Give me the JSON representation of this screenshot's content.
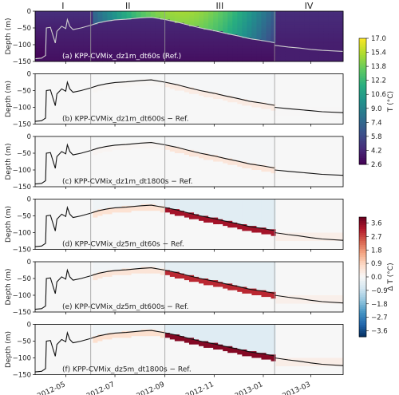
{
  "chart_data": {
    "type": "heatmap",
    "period_labels": [
      "I",
      "II",
      "III",
      "IV"
    ],
    "period_boundaries": [
      "2012-06-01",
      "2012-09-01",
      "2013-01-15"
    ],
    "x_range": [
      "2012-03-24",
      "2013-04-10"
    ],
    "x_ticks": [
      "2012-05",
      "2012-07",
      "2012-09",
      "2012-11",
      "2013-01",
      "2013-03"
    ],
    "ylabel": "Depth (m)",
    "ylim": [
      -150,
      0
    ],
    "y_ticks": [
      0,
      -50,
      -100,
      -150
    ],
    "colorbar_T": {
      "label": "T (°C)",
      "range": [
        2.6,
        17.0
      ],
      "ticks": [
        "17.0",
        "15.4",
        "13.8",
        "12.2",
        "10.6",
        "9.0",
        "7.4",
        "5.8",
        "4.2",
        "2.6"
      ],
      "colors": [
        "#440154",
        "#472d7b",
        "#3b528b",
        "#2c728e",
        "#21918c",
        "#28ae80",
        "#5ec962",
        "#addc30",
        "#fde725"
      ]
    },
    "colorbar_dT": {
      "label": "Δ T (°C)",
      "range": [
        -4.0,
        4.0
      ],
      "ticks": [
        "3.6",
        "2.7",
        "1.8",
        "0.9",
        "0.0",
        "−0.9",
        "−1.8",
        "−2.7",
        "−3.6"
      ],
      "colors": [
        "#053061",
        "#2166ac",
        "#4393c3",
        "#92c5de",
        "#d1e5f0",
        "#f7f7f7",
        "#fddbc7",
        "#f4a582",
        "#d6604d",
        "#b2182b",
        "#67001f"
      ]
    },
    "mixed_layer_depth": {
      "dates": [
        "2012-03-24",
        "2012-04-01",
        "2012-04-06",
        "2012-04-07",
        "2012-04-12",
        "2012-04-18",
        "2012-04-20",
        "2012-04-22",
        "2012-04-26",
        "2012-05-01",
        "2012-05-03",
        "2012-05-06",
        "2012-05-10",
        "2012-05-20",
        "2012-06-01",
        "2012-06-10",
        "2012-06-20",
        "2012-07-01",
        "2012-07-15",
        "2012-08-01",
        "2012-08-15",
        "2012-09-01",
        "2012-09-15",
        "2012-10-01",
        "2012-10-15",
        "2012-11-01",
        "2012-11-15",
        "2012-12-01",
        "2012-12-15",
        "2013-01-01",
        "2013-01-15"
      ],
      "depth": [
        -142,
        -140,
        -132,
        -50,
        -48,
        -95,
        -60,
        -55,
        -45,
        -52,
        -25,
        -45,
        -55,
        -50,
        -42,
        -35,
        -30,
        -26,
        -24,
        -20,
        -18,
        -25,
        -32,
        -42,
        -50,
        -58,
        -66,
        -74,
        -82,
        -88,
        -94
      ]
    },
    "period_iv_depth": {
      "ref": [
        -102,
        -107,
        -110,
        -114,
        -117,
        -120
      ],
      "dz1m": [
        -100,
        -104,
        -107,
        -110,
        -113,
        -116
      ],
      "dz5m": [
        -100,
        -106,
        -110,
        -115,
        -119,
        -123
      ],
      "dates": [
        "2013-01-15",
        "2013-02-01",
        "2013-02-15",
        "2013-03-01",
        "2013-03-15",
        "2013-04-10"
      ]
    },
    "panels": [
      {
        "label": "(a) KPP-CVMix_dz1m_dt60s (Ref.)",
        "field": "T"
      },
      {
        "label": "(b) KPP-CVMix_dz1m_dt600s − Ref.",
        "field": "dT",
        "bias": 0.1
      },
      {
        "label": "(c) KPP-CVMix_dz1m_dt1800s − Ref.",
        "field": "dT",
        "bias": 0.15
      },
      {
        "label": "(d) KPP-CVMix_dz5m_dt60s − Ref.",
        "field": "dT",
        "bias": 1.0
      },
      {
        "label": "(e) KPP-CVMix_dz5m_dt600s − Ref.",
        "field": "dT",
        "bias": 0.9
      },
      {
        "label": "(f) KPP-CVMix_dz5m_dt1800s − Ref.",
        "field": "dT",
        "bias": 1.1
      }
    ]
  }
}
